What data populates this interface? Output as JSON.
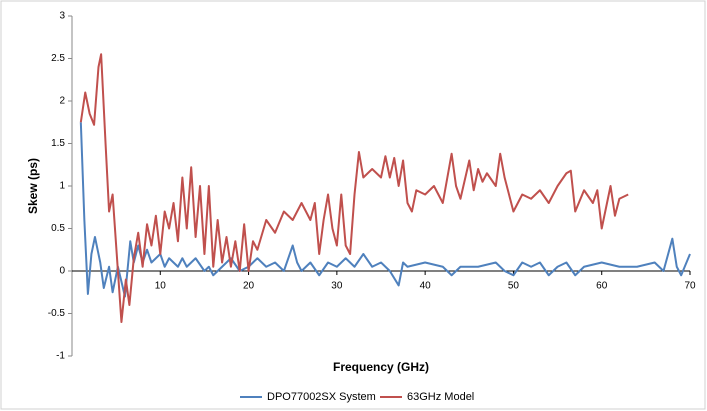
{
  "chart_data": {
    "type": "line",
    "x_label": "Frequency (GHz)",
    "y_label": "Skew (ps)",
    "xlim": [
      0,
      70
    ],
    "xticks": [
      10,
      20,
      30,
      40,
      50,
      60,
      70
    ],
    "ylim": [
      -1,
      3
    ],
    "yticks": [
      -1,
      -0.5,
      0,
      0.5,
      1,
      1.5,
      2,
      2.5,
      3
    ],
    "grid": false,
    "legend": "bottom",
    "series": [
      {
        "name": "DPO77002SX System",
        "color": "#4f81bd",
        "x": [
          1,
          1.4,
          1.8,
          2.2,
          2.6,
          3.2,
          3.6,
          4.2,
          4.6,
          5.2,
          6,
          6.6,
          7,
          7.5,
          8,
          8.5,
          9,
          10,
          10.5,
          11,
          12,
          12.5,
          13,
          14,
          15,
          15.5,
          16,
          17,
          18,
          19,
          20,
          21,
          22,
          23,
          24,
          25,
          25.5,
          26,
          27,
          28,
          29,
          30,
          31,
          32,
          33,
          34,
          35,
          36,
          37,
          37.5,
          38,
          40,
          42,
          43,
          44,
          46,
          48,
          49,
          50,
          51,
          52,
          53,
          54,
          55,
          56,
          57,
          58,
          60,
          62,
          64,
          66,
          67,
          68,
          68.5,
          69,
          70
        ],
        "values": [
          1.75,
          0.6,
          -0.27,
          0.2,
          0.4,
          0.1,
          -0.2,
          0.05,
          -0.25,
          0.05,
          -0.3,
          0.35,
          0.1,
          0.3,
          0.1,
          0.25,
          0.1,
          0.2,
          0.05,
          0.15,
          0.05,
          0.15,
          0.05,
          0.15,
          0.0,
          0.05,
          -0.05,
          0.05,
          0.15,
          0.0,
          0.05,
          0.15,
          0.05,
          0.1,
          0.0,
          0.3,
          0.1,
          0.0,
          0.1,
          -0.05,
          0.1,
          0.05,
          0.15,
          0.05,
          0.2,
          0.05,
          0.1,
          0.0,
          -0.17,
          0.1,
          0.05,
          0.1,
          0.05,
          -0.05,
          0.05,
          0.05,
          0.1,
          0.0,
          -0.05,
          0.1,
          0.05,
          0.1,
          -0.05,
          0.05,
          0.1,
          -0.05,
          0.05,
          0.1,
          0.05,
          0.05,
          0.1,
          0.0,
          0.38,
          0.05,
          -0.05,
          0.2
        ]
      },
      {
        "name": "63GHz Model",
        "color": "#c0504d",
        "x": [
          1,
          1.5,
          2,
          2.5,
          3,
          3.3,
          3.8,
          4.2,
          4.6,
          5.2,
          5.6,
          6.1,
          6.5,
          7,
          7.5,
          8,
          8.5,
          9,
          9.5,
          10,
          10.5,
          11,
          11.5,
          12,
          12.5,
          13,
          13.5,
          14,
          14.5,
          15,
          15.5,
          16,
          16.5,
          17,
          17.5,
          18,
          18.5,
          19,
          19.5,
          20,
          20.5,
          21,
          22,
          23,
          24,
          25,
          26,
          27,
          27.5,
          28,
          28.5,
          29,
          29.5,
          30,
          30.5,
          31,
          31.5,
          32,
          32.5,
          33,
          34,
          35,
          35.5,
          36,
          36.5,
          37,
          37.5,
          38,
          38.5,
          39,
          40,
          41,
          42,
          43,
          43.5,
          44,
          45,
          45.5,
          46,
          46.5,
          47,
          48,
          48.5,
          49,
          50,
          51,
          52,
          53,
          54,
          55,
          56,
          56.5,
          57,
          58,
          59,
          59.5,
          60,
          61,
          61.5,
          62,
          63
        ],
        "values": [
          1.75,
          2.1,
          1.85,
          1.72,
          2.4,
          2.55,
          1.5,
          0.7,
          0.9,
          0.0,
          -0.6,
          -0.1,
          -0.4,
          0.15,
          0.45,
          0.05,
          0.55,
          0.3,
          0.65,
          0.2,
          0.7,
          0.5,
          0.8,
          0.35,
          1.1,
          0.5,
          1.22,
          0.4,
          1.0,
          0.2,
          1.0,
          0.05,
          0.6,
          0.1,
          0.4,
          0.05,
          0.35,
          0.0,
          0.55,
          0.0,
          0.35,
          0.25,
          0.6,
          0.45,
          0.7,
          0.6,
          0.8,
          0.6,
          0.8,
          0.2,
          0.6,
          0.9,
          0.5,
          0.3,
          0.9,
          0.3,
          0.2,
          0.9,
          1.4,
          1.1,
          1.2,
          1.1,
          1.35,
          1.1,
          1.33,
          1.0,
          1.3,
          0.8,
          0.7,
          0.95,
          0.9,
          1.0,
          0.8,
          1.38,
          1.0,
          0.85,
          1.3,
          0.95,
          1.2,
          1.05,
          1.15,
          1.0,
          1.38,
          1.1,
          0.7,
          0.9,
          0.85,
          0.95,
          0.8,
          1.0,
          1.15,
          1.18,
          0.7,
          0.95,
          0.8,
          0.95,
          0.5,
          1.0,
          0.65,
          0.85,
          0.9
        ]
      }
    ]
  }
}
